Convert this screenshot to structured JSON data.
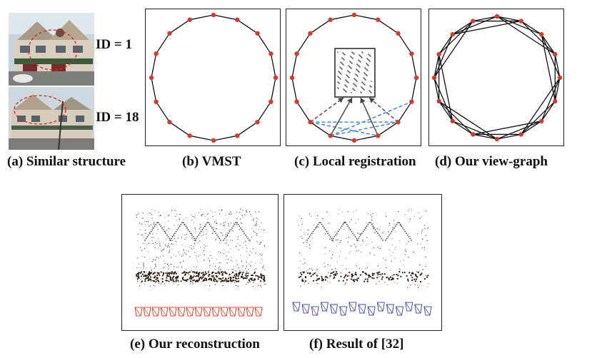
{
  "captions": {
    "a": "(a) Similar structure",
    "b": "(b) VMST",
    "c": "(c) Local registration",
    "d": "(d) Our view-graph",
    "e": "(e) Our reconstruction",
    "f": "(f) Result of [32]"
  },
  "id_labels": {
    "top": "ID = 1",
    "bottom": "ID = 18"
  },
  "graph": {
    "node_count": 16,
    "node_color": "#d23b2e",
    "edge_color": "#111111",
    "highlight_color": "#3a7bd5"
  },
  "camera_colors": {
    "ours": "#d9452f",
    "baseline": "#4a4fb0"
  }
}
